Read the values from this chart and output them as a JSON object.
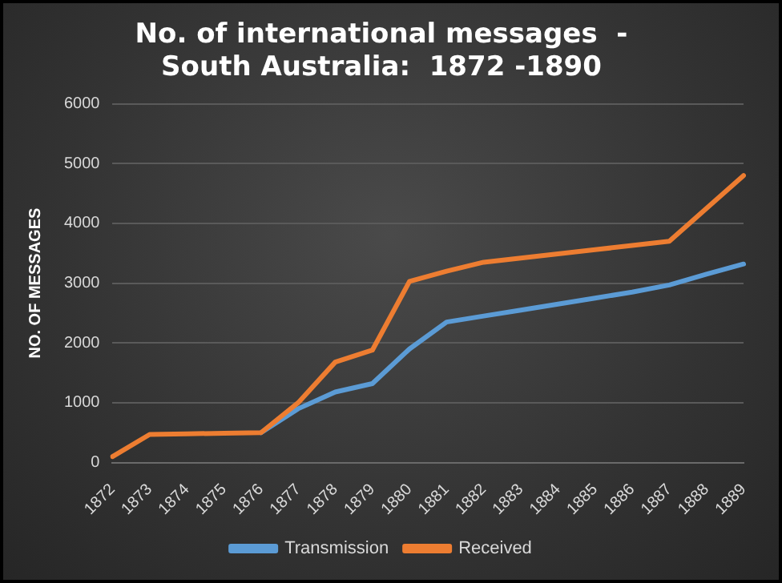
{
  "chart_data": {
    "type": "line",
    "title": [
      "No. of international messages  -",
      "South Australia:  1872 -1890"
    ],
    "ylabel": "NO. OF MESSAGES",
    "categories": [
      "1872",
      "1873",
      "1874",
      "1875",
      "1876",
      "1877",
      "1878",
      "1879",
      "1880",
      "1881",
      "1882",
      "1883",
      "1884",
      "1885",
      "1886",
      "1887",
      "1888",
      "1889"
    ],
    "series": [
      {
        "name": "Transmission",
        "color": "#5b9bd5",
        "values": [
          null,
          null,
          null,
          null,
          500,
          900,
          1180,
          1320,
          1900,
          2350,
          2450,
          2550,
          2650,
          2750,
          2850,
          2970,
          3150,
          3320
        ]
      },
      {
        "name": "Received",
        "color": "#ed7d31",
        "values": [
          100,
          470,
          480,
          490,
          500,
          1000,
          1680,
          1880,
          3030,
          3200,
          3350,
          3420,
          3490,
          3560,
          3630,
          3700,
          4250,
          4800
        ]
      }
    ],
    "ylim": [
      0,
      6000
    ],
    "yticks": [
      0,
      1000,
      2000,
      3000,
      4000,
      5000,
      6000
    ],
    "grid": "y",
    "legend": "bottom",
    "marker": "none",
    "line_style": "solid"
  }
}
